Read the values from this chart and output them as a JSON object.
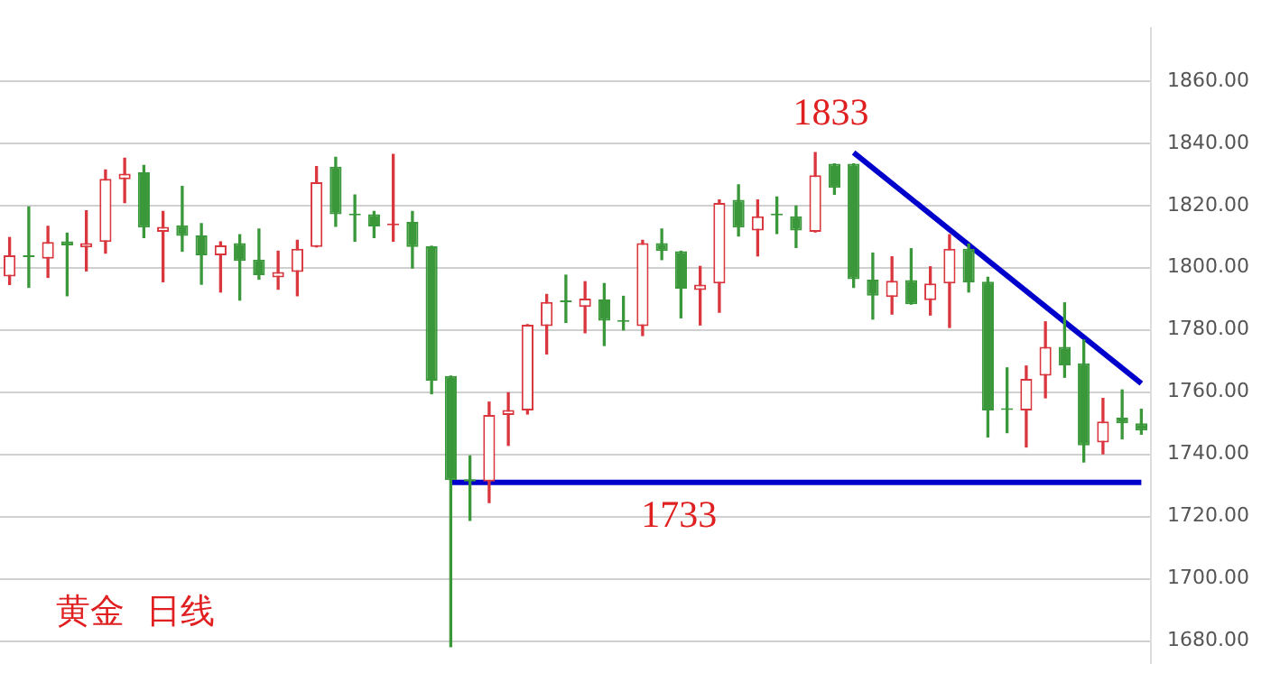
{
  "chart_data": {
    "type": "candlestick",
    "title": "黄金  日线",
    "categories": [
      null,
      null,
      null,
      null,
      null,
      null,
      null,
      null,
      null,
      null,
      null,
      null,
      null,
      null,
      null,
      null,
      null,
      null,
      null,
      null,
      null,
      null,
      null,
      null,
      null,
      null,
      null,
      null,
      null,
      null,
      null,
      null,
      null,
      null,
      null,
      null,
      null,
      null,
      null,
      null,
      null,
      null,
      null,
      null,
      null,
      null,
      null,
      null,
      null,
      null,
      null,
      null,
      null,
      null,
      null,
      null,
      null,
      null,
      null,
      null
    ],
    "ohlc": [
      [
        1797.2,
        1809.7,
        1794.6,
        1804.0
      ],
      [
        1803.6,
        1819.5,
        1793.7,
        1803.4
      ],
      [
        1802.9,
        1813.3,
        1796.9,
        1808.3
      ],
      [
        1808.5,
        1811.1,
        1791.0,
        1807.2
      ],
      [
        1806.5,
        1818.3,
        1799.0,
        1807.9
      ],
      [
        1808.3,
        1831.4,
        1804.7,
        1828.6
      ],
      [
        1828.4,
        1835.2,
        1820.9,
        1830.2
      ],
      [
        1830.7,
        1832.9,
        1809.7,
        1812.9
      ],
      [
        1811.5,
        1818.1,
        1795.5,
        1813.1
      ],
      [
        1813.6,
        1826.1,
        1805.3,
        1810.2
      ],
      [
        1810.4,
        1814.2,
        1794.7,
        1804.0
      ],
      [
        1804.0,
        1808.3,
        1792.2,
        1807.2
      ],
      [
        1807.9,
        1810.6,
        1789.6,
        1802.2
      ],
      [
        1802.6,
        1812.4,
        1796.3,
        1797.6
      ],
      [
        1796.9,
        1805.3,
        1793.1,
        1798.6
      ],
      [
        1798.6,
        1808.8,
        1791.0,
        1806.1
      ],
      [
        1806.7,
        1832.5,
        1806.7,
        1827.5
      ],
      [
        1832.5,
        1835.5,
        1813.3,
        1817.2
      ],
      [
        1816.9,
        1823.4,
        1808.5,
        1816.8
      ],
      [
        1817.2,
        1818.1,
        1809.7,
        1813.3
      ],
      [
        1813.6,
        1836.4,
        1808.5,
        1814.0
      ],
      [
        1814.7,
        1818.1,
        1799.9,
        1806.7
      ],
      [
        1806.9,
        1806.9,
        1759.5,
        1763.7
      ],
      [
        1765.2,
        1765.2,
        1678.2,
        1731.7
      ],
      [
        1732.0,
        1739.5,
        1718.8,
        1731.3
      ],
      [
        1731.3,
        1756.8,
        1724.5,
        1752.7
      ],
      [
        1752.7,
        1759.8,
        1742.9,
        1754.3
      ],
      [
        1754.1,
        1781.7,
        1753.0,
        1781.7
      ],
      [
        1781.2,
        1791.4,
        1772.3,
        1789.0
      ],
      [
        1789.0,
        1797.6,
        1782.4,
        1788.9
      ],
      [
        1787.4,
        1795.5,
        1779.1,
        1790.1
      ],
      [
        1789.8,
        1794.9,
        1775.0,
        1783.0
      ],
      [
        1782.8,
        1790.8,
        1780.0,
        1782.6
      ],
      [
        1781.2,
        1808.8,
        1778.2,
        1807.9
      ],
      [
        1807.9,
        1812.4,
        1802.6,
        1805.4
      ],
      [
        1805.3,
        1805.3,
        1783.9,
        1793.3
      ],
      [
        1792.8,
        1800.4,
        1781.6,
        1794.6
      ],
      [
        1794.9,
        1821.8,
        1785.7,
        1820.8
      ],
      [
        1821.8,
        1826.6,
        1810.2,
        1812.9
      ],
      [
        1812.0,
        1821.8,
        1803.8,
        1816.5
      ],
      [
        1817.0,
        1822.7,
        1811.0,
        1816.8
      ],
      [
        1816.5,
        1819.8,
        1806.5,
        1812.0
      ],
      [
        1811.5,
        1837.0,
        1811.5,
        1829.7
      ],
      [
        1833.4,
        1833.4,
        1823.6,
        1825.7
      ],
      [
        1833.4,
        1833.4,
        1793.7,
        1796.3
      ],
      [
        1796.2,
        1804.7,
        1783.5,
        1791.0
      ],
      [
        1790.6,
        1803.5,
        1785.1,
        1795.8
      ],
      [
        1796.0,
        1806.1,
        1788.3,
        1788.3
      ],
      [
        1789.6,
        1800.3,
        1784.8,
        1794.9
      ],
      [
        1794.9,
        1810.6,
        1780.8,
        1806.1
      ],
      [
        1806.1,
        1807.6,
        1792.2,
        1795.3
      ],
      [
        1795.5,
        1796.9,
        1745.6,
        1754.1
      ],
      [
        1754.5,
        1767.8,
        1747.0,
        1754.3
      ],
      [
        1754.1,
        1768.4,
        1742.4,
        1764.3
      ],
      [
        1765.3,
        1782.6,
        1758.2,
        1774.6
      ],
      [
        1774.6,
        1788.7,
        1764.8,
        1768.6
      ],
      [
        1769.3,
        1776.8,
        1737.6,
        1742.9
      ],
      [
        1743.8,
        1758.0,
        1740.2,
        1750.6
      ],
      [
        1751.8,
        1760.7,
        1745.0,
        1750.0
      ],
      [
        1750.0,
        1754.5,
        1746.5,
        1747.7
      ]
    ],
    "series": [
      {
        "type": "line",
        "color": "#0000cc",
        "values": [
          null,
          null,
          null,
          null,
          null,
          null,
          null,
          null,
          null,
          null,
          null,
          null,
          null,
          null,
          null,
          null,
          null,
          null,
          null,
          null,
          null,
          null,
          null,
          null,
          null,
          null,
          null,
          null,
          null,
          null,
          null,
          null,
          null,
          null,
          null,
          null,
          null,
          null,
          null,
          null,
          null,
          null,
          null,
          null,
          1837.0,
          null,
          null,
          null,
          null,
          null,
          null,
          null,
          null,
          null,
          null,
          null,
          null,
          null,
          null,
          1762.8
        ]
      },
      {
        "type": "line",
        "color": "#0000cc",
        "values": [
          null,
          null,
          null,
          null,
          null,
          null,
          null,
          null,
          null,
          null,
          null,
          null,
          null,
          null,
          null,
          null,
          null,
          null,
          null,
          null,
          null,
          null,
          null,
          1731.0,
          null,
          null,
          null,
          null,
          null,
          null,
          null,
          null,
          null,
          null,
          null,
          null,
          null,
          null,
          null,
          null,
          null,
          null,
          null,
          null,
          null,
          null,
          null,
          null,
          null,
          null,
          null,
          null,
          null,
          null,
          null,
          null,
          null,
          null,
          null,
          1731.0
        ]
      }
    ],
    "annotations": [
      "1833",
      "1733"
    ],
    "ylim": [
      1673,
      1877
    ],
    "yticks": [
      {
        "value": 1680,
        "label": "1680.00"
      },
      {
        "value": 1700,
        "label": "1700.00"
      },
      {
        "value": 1720,
        "label": "1720.00"
      },
      {
        "value": 1740,
        "label": "1740.00"
      },
      {
        "value": 1760,
        "label": "1760.00"
      },
      {
        "value": 1780,
        "label": "1780.00"
      },
      {
        "value": 1800,
        "label": "1800.00"
      },
      {
        "value": 1820,
        "label": "1820.00"
      },
      {
        "value": 1840,
        "label": "1840.00"
      },
      {
        "value": 1860,
        "label": "1860.00"
      }
    ],
    "grid": "y",
    "tick_labels": "y",
    "marker": "none"
  }
}
